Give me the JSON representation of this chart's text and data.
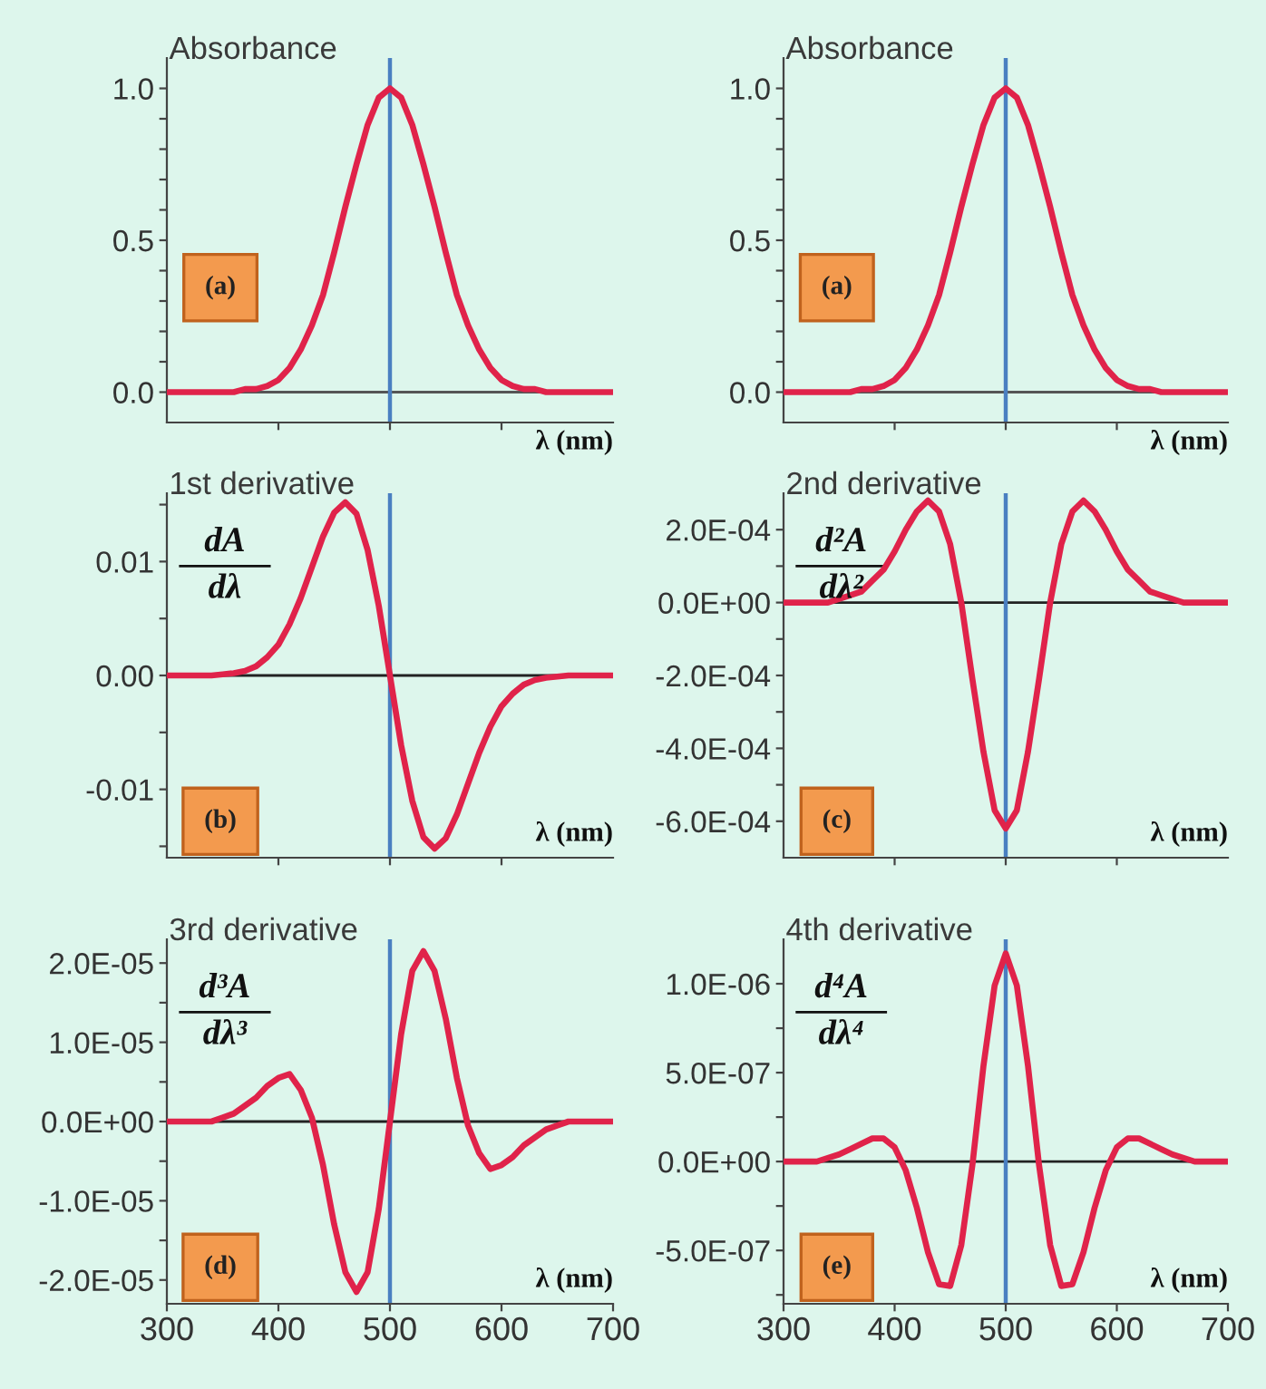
{
  "chart_data": [
    {
      "type": "line",
      "title": "Absorbance",
      "xlabel": "λ (nm)",
      "annotations": [
        "(a)"
      ],
      "x": [
        300,
        310,
        320,
        330,
        340,
        350,
        360,
        370,
        380,
        390,
        400,
        410,
        420,
        430,
        440,
        450,
        460,
        470,
        480,
        490,
        500,
        510,
        520,
        530,
        540,
        550,
        560,
        570,
        580,
        590,
        600,
        610,
        620,
        630,
        640,
        650,
        660,
        670,
        680,
        690,
        700
      ],
      "series": [
        {
          "color": "#e0234a",
          "values": [
            0,
            0,
            0,
            0,
            0,
            0,
            0,
            0.01,
            0.01,
            0.02,
            0.04,
            0.08,
            0.14,
            0.22,
            0.32,
            0.46,
            0.61,
            0.75,
            0.88,
            0.97,
            1.0,
            0.97,
            0.88,
            0.75,
            0.61,
            0.46,
            0.32,
            0.22,
            0.14,
            0.08,
            0.04,
            0.02,
            0.01,
            0.01,
            0,
            0,
            0,
            0,
            0,
            0,
            0
          ]
        }
      ],
      "xlim": [
        300,
        700
      ],
      "ylim": [
        -0.1,
        1.1
      ],
      "xticks": [
        {
          "value": 400,
          "label": null
        },
        {
          "value": 500,
          "label": null
        },
        {
          "value": 600,
          "label": null
        }
      ],
      "yticks": [
        {
          "value": 0.0,
          "label": "0.0"
        },
        {
          "value": 0.1,
          "label": null
        },
        {
          "value": 0.2,
          "label": null
        },
        {
          "value": 0.3,
          "label": null
        },
        {
          "value": 0.4,
          "label": null
        },
        {
          "value": 0.5,
          "label": "0.5"
        },
        {
          "value": 0.6,
          "label": null
        },
        {
          "value": 0.7,
          "label": null
        },
        {
          "value": 0.8,
          "label": null
        },
        {
          "value": 0.9,
          "label": null
        },
        {
          "value": 1.0,
          "label": "1.0"
        }
      ],
      "tick_labels": "y",
      "ref_lines": [
        {
          "axis": "y",
          "value": 0,
          "color": "#555555"
        },
        {
          "axis": "x",
          "value": 500,
          "color": "#4a7fc1"
        }
      ]
    },
    {
      "type": "line",
      "title": "Absorbance",
      "xlabel": "λ (nm)",
      "annotations": [
        "(a)"
      ],
      "x": [
        300,
        310,
        320,
        330,
        340,
        350,
        360,
        370,
        380,
        390,
        400,
        410,
        420,
        430,
        440,
        450,
        460,
        470,
        480,
        490,
        500,
        510,
        520,
        530,
        540,
        550,
        560,
        570,
        580,
        590,
        600,
        610,
        620,
        630,
        640,
        650,
        660,
        670,
        680,
        690,
        700
      ],
      "series": [
        {
          "color": "#e0234a",
          "values": [
            0,
            0,
            0,
            0,
            0,
            0,
            0,
            0.01,
            0.01,
            0.02,
            0.04,
            0.08,
            0.14,
            0.22,
            0.32,
            0.46,
            0.61,
            0.75,
            0.88,
            0.97,
            1.0,
            0.97,
            0.88,
            0.75,
            0.61,
            0.46,
            0.32,
            0.22,
            0.14,
            0.08,
            0.04,
            0.02,
            0.01,
            0.01,
            0,
            0,
            0,
            0,
            0,
            0,
            0
          ]
        }
      ],
      "xlim": [
        300,
        700
      ],
      "ylim": [
        -0.1,
        1.1
      ],
      "xticks": [
        {
          "value": 400,
          "label": null
        },
        {
          "value": 500,
          "label": null
        },
        {
          "value": 600,
          "label": null
        }
      ],
      "yticks": [
        {
          "value": 0.0,
          "label": "0.0"
        },
        {
          "value": 0.1,
          "label": null
        },
        {
          "value": 0.2,
          "label": null
        },
        {
          "value": 0.3,
          "label": null
        },
        {
          "value": 0.4,
          "label": null
        },
        {
          "value": 0.5,
          "label": "0.5"
        },
        {
          "value": 0.6,
          "label": null
        },
        {
          "value": 0.7,
          "label": null
        },
        {
          "value": 0.8,
          "label": null
        },
        {
          "value": 0.9,
          "label": null
        },
        {
          "value": 1.0,
          "label": "1.0"
        }
      ],
      "tick_labels": "y",
      "ref_lines": [
        {
          "axis": "y",
          "value": 0,
          "color": "#555555"
        },
        {
          "axis": "x",
          "value": 500,
          "color": "#4a7fc1"
        }
      ]
    },
    {
      "type": "line",
      "title": "1st derivative",
      "ylabel": "dA\ndλ",
      "xlabel": "λ (nm)",
      "annotations": [
        "(b)"
      ],
      "x": [
        300,
        310,
        320,
        330,
        340,
        350,
        360,
        370,
        380,
        390,
        400,
        410,
        420,
        430,
        440,
        450,
        460,
        470,
        480,
        490,
        500,
        510,
        520,
        530,
        540,
        550,
        560,
        570,
        580,
        590,
        600,
        610,
        620,
        630,
        640,
        650,
        660,
        670,
        680,
        690,
        700
      ],
      "series": [
        {
          "color": "#e0234a",
          "values": [
            0,
            0,
            0,
            0,
            0,
            0.0001,
            0.0002,
            0.0004,
            0.0008,
            0.0016,
            0.0027,
            0.0045,
            0.0068,
            0.0095,
            0.0122,
            0.0143,
            0.0152,
            0.0142,
            0.011,
            0.0061,
            0,
            -0.0061,
            -0.011,
            -0.0142,
            -0.0152,
            -0.0143,
            -0.0122,
            -0.0095,
            -0.0068,
            -0.0045,
            -0.0027,
            -0.0016,
            -0.0008,
            -0.0004,
            -0.0002,
            -0.0001,
            0,
            0,
            0,
            0,
            0
          ]
        }
      ],
      "xlim": [
        300,
        700
      ],
      "ylim": [
        -0.016,
        0.016
      ],
      "xticks": [
        {
          "value": 400,
          "label": null
        },
        {
          "value": 500,
          "label": null
        },
        {
          "value": 600,
          "label": null
        }
      ],
      "yticks": [
        {
          "value": -0.015,
          "label": null
        },
        {
          "value": -0.01,
          "label": "-0.01"
        },
        {
          "value": -0.005,
          "label": null
        },
        {
          "value": 0,
          "label": "0.00"
        },
        {
          "value": 0.005,
          "label": null
        },
        {
          "value": 0.01,
          "label": "0.01"
        },
        {
          "value": 0.015,
          "label": null
        }
      ],
      "tick_labels": "y",
      "ref_lines": [
        {
          "axis": "y",
          "value": 0,
          "color": "#222222"
        },
        {
          "axis": "x",
          "value": 500,
          "color": "#4a7fc1"
        }
      ]
    },
    {
      "type": "line",
      "title": "2nd derivative",
      "ylabel": "d²A\ndλ²",
      "xlabel": "λ (nm)",
      "annotations": [
        "(c)"
      ],
      "x": [
        300,
        310,
        320,
        330,
        340,
        350,
        360,
        370,
        380,
        390,
        400,
        410,
        420,
        430,
        440,
        450,
        460,
        470,
        480,
        490,
        500,
        510,
        520,
        530,
        540,
        550,
        560,
        570,
        580,
        590,
        600,
        610,
        620,
        630,
        640,
        650,
        660,
        670,
        680,
        690,
        700
      ],
      "series": [
        {
          "color": "#e0234a",
          "values": [
            0,
            0,
            0,
            0,
            0,
            1e-05,
            2e-05,
            3e-05,
            6e-05,
            9e-05,
            0.00014,
            0.0002,
            0.00025,
            0.00028,
            0.00025,
            0.00016,
            0,
            -0.00021,
            -0.00041,
            -0.00057,
            -0.00062,
            -0.00057,
            -0.00041,
            -0.00021,
            0,
            0.00016,
            0.00025,
            0.00028,
            0.00025,
            0.0002,
            0.00014,
            9e-05,
            6e-05,
            3e-05,
            2e-05,
            1e-05,
            0,
            0,
            0,
            0,
            0
          ]
        }
      ],
      "xlim": [
        300,
        700
      ],
      "ylim": [
        -0.0007,
        0.0003
      ],
      "xticks": [
        {
          "value": 400,
          "label": null
        },
        {
          "value": 500,
          "label": null
        },
        {
          "value": 600,
          "label": null
        }
      ],
      "yticks": [
        {
          "value": -0.0006,
          "label": "-6.0E-04"
        },
        {
          "value": -0.0005,
          "label": null
        },
        {
          "value": -0.0004,
          "label": "-4.0E-04"
        },
        {
          "value": -0.0003,
          "label": null
        },
        {
          "value": -0.0002,
          "label": "-2.0E-04"
        },
        {
          "value": -0.0001,
          "label": null
        },
        {
          "value": 0,
          "label": "0.0E+00"
        },
        {
          "value": 0.0001,
          "label": null
        },
        {
          "value": 0.0002,
          "label": "2.0E-04"
        }
      ],
      "tick_labels": "y",
      "ref_lines": [
        {
          "axis": "y",
          "value": 0,
          "color": "#222222"
        },
        {
          "axis": "x",
          "value": 500,
          "color": "#4a7fc1"
        }
      ]
    },
    {
      "type": "line",
      "title": "3rd derivative",
      "ylabel": "d³A\ndλ³",
      "xlabel": "λ (nm)",
      "annotations": [
        "(d)"
      ],
      "x": [
        300,
        310,
        320,
        330,
        340,
        350,
        360,
        370,
        380,
        390,
        400,
        410,
        420,
        430,
        440,
        450,
        460,
        470,
        480,
        490,
        500,
        510,
        520,
        530,
        540,
        550,
        560,
        570,
        580,
        590,
        600,
        610,
        620,
        630,
        640,
        650,
        660,
        670,
        680,
        690,
        700
      ],
      "series": [
        {
          "color": "#e0234a",
          "values": [
            0,
            0,
            0,
            0,
            0,
            5e-07,
            1e-06,
            2e-06,
            3e-06,
            4.5e-06,
            5.5e-06,
            6e-06,
            4e-06,
            5e-07,
            -5.5e-06,
            -1.3e-05,
            -1.9e-05,
            -2.15e-05,
            -1.9e-05,
            -1.1e-05,
            0,
            1.1e-05,
            1.9e-05,
            2.15e-05,
            1.9e-05,
            1.3e-05,
            5.5e-06,
            -5e-07,
            -4e-06,
            -6e-06,
            -5.5e-06,
            -4.5e-06,
            -3e-06,
            -2e-06,
            -1e-06,
            -5e-07,
            0,
            0,
            0,
            0,
            0
          ]
        }
      ],
      "xlim": [
        300,
        700
      ],
      "ylim": [
        -2.3e-05,
        2.3e-05
      ],
      "xticks": [
        300,
        400,
        500,
        600,
        700
      ],
      "yticks": [
        {
          "value": -2e-05,
          "label": "-2.0E-05"
        },
        {
          "value": -1.5e-05,
          "label": null
        },
        {
          "value": -1e-05,
          "label": "-1.0E-05"
        },
        {
          "value": -5e-06,
          "label": null
        },
        {
          "value": 0,
          "label": "0.0E+00"
        },
        {
          "value": 5e-06,
          "label": null
        },
        {
          "value": 1e-05,
          "label": "1.0E-05"
        },
        {
          "value": 1.5e-05,
          "label": null
        },
        {
          "value": 2e-05,
          "label": "2.0E-05"
        }
      ],
      "ref_lines": [
        {
          "axis": "y",
          "value": 0,
          "color": "#222222"
        },
        {
          "axis": "x",
          "value": 500,
          "color": "#4a7fc1"
        }
      ]
    },
    {
      "type": "line",
      "title": "4th derivative",
      "ylabel": "d⁴A\ndλ⁴",
      "xlabel": "λ (nm)",
      "annotations": [
        "(e)"
      ],
      "x": [
        300,
        310,
        320,
        330,
        340,
        350,
        360,
        370,
        380,
        390,
        400,
        410,
        420,
        430,
        440,
        450,
        460,
        470,
        480,
        490,
        500,
        510,
        520,
        530,
        540,
        550,
        560,
        570,
        580,
        590,
        600,
        610,
        620,
        630,
        640,
        650,
        660,
        670,
        680,
        690,
        700
      ],
      "series": [
        {
          "color": "#e0234a",
          "values": [
            0,
            0,
            0,
            0,
            2e-08,
            4e-08,
            7e-08,
            1e-07,
            1.3e-07,
            1.3e-07,
            8e-08,
            -5e-08,
            -2.6e-07,
            -5.1e-07,
            -6.9e-07,
            -7e-07,
            -4.7e-07,
            -2e-08,
            5.4e-07,
            9.9e-07,
            1.17e-06,
            9.9e-07,
            5.4e-07,
            -2e-08,
            -4.7e-07,
            -7e-07,
            -6.9e-07,
            -5.1e-07,
            -2.6e-07,
            -5e-08,
            8e-08,
            1.3e-07,
            1.3e-07,
            1e-07,
            7e-08,
            4e-08,
            2e-08,
            0,
            0,
            0,
            0
          ]
        }
      ],
      "xlim": [
        300,
        700
      ],
      "ylim": [
        -8e-07,
        1.25e-06
      ],
      "xticks": [
        300,
        400,
        500,
        600,
        700
      ],
      "yticks": [
        {
          "value": -7.5e-07,
          "label": null
        },
        {
          "value": -5e-07,
          "label": "-5.0E-07"
        },
        {
          "value": -2.5e-07,
          "label": null
        },
        {
          "value": 0,
          "label": "0.0E+00"
        },
        {
          "value": 2.5e-07,
          "label": null
        },
        {
          "value": 5e-07,
          "label": "5.0E-07"
        },
        {
          "value": 7.5e-07,
          "label": null
        },
        {
          "value": 1e-06,
          "label": "1.0E-06"
        }
      ],
      "ref_lines": [
        {
          "axis": "y",
          "value": 0,
          "color": "#222222"
        },
        {
          "axis": "x",
          "value": 500,
          "color": "#4a7fc1"
        }
      ]
    }
  ]
}
